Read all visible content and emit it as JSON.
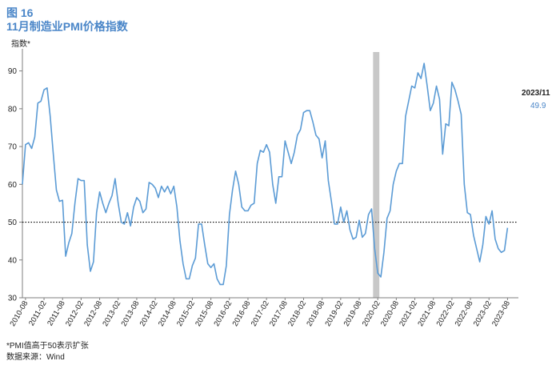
{
  "figure": {
    "label": "图 16",
    "title": "11月制造业PMI价格指数",
    "note": "*PMI值高于50表示扩张",
    "source": "数据来源：Wind"
  },
  "chart_data": {
    "type": "line",
    "ylabel": "指数*",
    "ylim": [
      30,
      95
    ],
    "yticks": [
      30,
      40,
      50,
      60,
      70,
      80,
      90
    ],
    "xlim": [
      "2010-07",
      "2023-11"
    ],
    "x_tick_labels": [
      "2010-08",
      "2011-02",
      "2011-08",
      "2012-02",
      "2012-08",
      "2013-02",
      "2013-08",
      "2014-02",
      "2014-08",
      "2015-02",
      "2015-08",
      "2016-02",
      "2016-08",
      "2017-02",
      "2017-08",
      "2018-02",
      "2018-08",
      "2019-02",
      "2019-08",
      "2020-02",
      "2020-08",
      "2021-02",
      "2021-08",
      "2022-02",
      "2022-08",
      "2023-02",
      "2023-08"
    ],
    "reference_line": {
      "y": 50,
      "style": "dotted",
      "color": "#000000"
    },
    "shaded_period": {
      "start": "2020-01",
      "end": "2020-02",
      "color": "#c8c8c8"
    },
    "grid": false,
    "legend": "none",
    "last_point": {
      "date_label": "2023/11",
      "value_label": "49.9"
    },
    "series": [
      {
        "color": "#5b9bd5",
        "start": "2010-07",
        "values": [
          60,
          70.5,
          71,
          69.5,
          72.5,
          81.5,
          82,
          85,
          85.5,
          78,
          68,
          58.5,
          55.5,
          55.8,
          41,
          44.5,
          47,
          55,
          61.5,
          61,
          61,
          44,
          37,
          39.5,
          52.5,
          58,
          55,
          52.5,
          55,
          57,
          61.5,
          55,
          50,
          49.5,
          52.5,
          49,
          54,
          56.5,
          55.5,
          52.5,
          53.5,
          60.5,
          60,
          59,
          56.5,
          59.5,
          58,
          59.5,
          57.5,
          59.5,
          54,
          45,
          39,
          35,
          35,
          38.5,
          40.5,
          49.5,
          49.5,
          44,
          39,
          38,
          39,
          35,
          33.5,
          33.5,
          38.5,
          52,
          58.5,
          63.5,
          60,
          54,
          53,
          53,
          54.5,
          55,
          65.5,
          69,
          68.5,
          70.5,
          68.5,
          60,
          55,
          62,
          62,
          71.5,
          68.5,
          65.5,
          68.5,
          73,
          74.5,
          79,
          79.5,
          79.5,
          76.5,
          73,
          72,
          67,
          71.5,
          61,
          55.5,
          49.5,
          49.5,
          54,
          50,
          53,
          48,
          45.5,
          46,
          50.5,
          46,
          47,
          52,
          53.5,
          43,
          36.5,
          35.5,
          42,
          51,
          53,
          60,
          63.5,
          65.5,
          65.5,
          78,
          82,
          86,
          85.5,
          89.5,
          88,
          92,
          86,
          79.5,
          81.5,
          86,
          82.5,
          68,
          76,
          75.5,
          87,
          85,
          82,
          78.5,
          60,
          52.5,
          52,
          46.5,
          43,
          39.5,
          44,
          51.5,
          49.5,
          53,
          45.5,
          43,
          42,
          42.5,
          48.5
        ]
      }
    ]
  }
}
